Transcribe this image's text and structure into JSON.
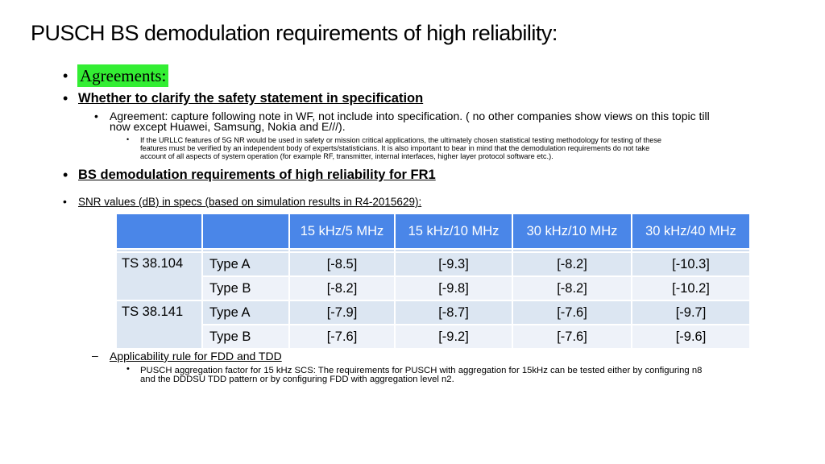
{
  "title": "PUSCH BS demodulation requirements of high reliability:",
  "bullets": {
    "agreements": "Agreements:",
    "clarify": "Whether to clarify the safety statement in specification",
    "agreement_line1": "Agreement: capture following note in WF, not include into specification. ( no other companies show views on this topic till",
    "agreement_line2": "now except Huawei, Samsung, Nokia and E///).",
    "note_line1": "If the URLLC features of 5G NR would be used in safety or mission critical applications, the ultimately chosen statistical testing methodology for testing of these",
    "note_line2": "features must be verified by an independent body of experts/statisticians. It is also important to bear in mind that the demodulation requirements do not take",
    "note_line3": "account of all aspects of system operation (for example RF, transmitter, internal interfaces, higher layer protocol software etc.).",
    "bs_demod": "BS demodulation requirements of high reliability for FR1",
    "snr": "SNR values (dB) in specs (based on simulation results in R4-2015629):",
    "applicability": "Applicability rule for FDD and TDD",
    "pusch_line1": "PUSCH aggregation factor for 15 kHz SCS: The requirements for PUSCH with aggregation for 15kHz can be tested either by configuring n8",
    "pusch_line2": "and the DDDSU TDD pattern or by configuring FDD with aggregation level n2."
  },
  "table": {
    "headers": [
      "",
      "",
      "15 kHz/5 MHz",
      "15 kHz/10 MHz",
      "30 kHz/10 MHz",
      "30 kHz/40 MHz"
    ],
    "rows": [
      {
        "spec": "TS 38.104",
        "type": "Type A",
        "values": [
          "[-8.5]",
          "[-9.3]",
          "[-8.2]",
          "[-10.3]"
        ]
      },
      {
        "spec": "",
        "type": "Type B",
        "values": [
          "[-8.2]",
          "[-9.8]",
          "[-8.2]",
          "[-10.2]"
        ]
      },
      {
        "spec": "TS 38.141",
        "type": "Type A",
        "values": [
          "[-7.9]",
          "[-8.7]",
          "[-7.6]",
          "[-9.7]"
        ]
      },
      {
        "spec": "",
        "type": "Type B",
        "values": [
          "[-7.6]",
          "[-9.2]",
          "[-7.6]",
          "[-9.6]"
        ]
      }
    ]
  },
  "colors": {
    "header_bg": "#4a86e8",
    "agreements_highlight": "#33ee33"
  }
}
